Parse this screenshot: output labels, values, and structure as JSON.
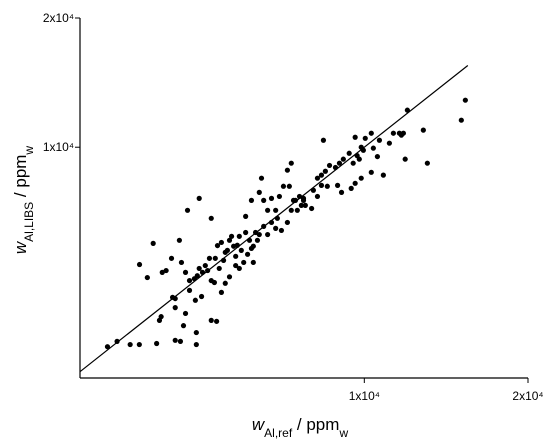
{
  "chart_data": {
    "type": "scatter",
    "log_x": true,
    "log_y": true,
    "color": "#000000",
    "x_label": [
      {
        "text": "w",
        "style": "italic"
      },
      {
        "text": "Al,ref",
        "style": "sub"
      },
      {
        "text": " / ppm"
      },
      {
        "text": "w",
        "style": "sub"
      }
    ],
    "y_label": [
      {
        "text": "w",
        "style": "italic"
      },
      {
        "text": "Al,LIBS",
        "style": "sub"
      },
      {
        "text": " / ppm"
      },
      {
        "text": "w",
        "style": "sub"
      }
    ],
    "xlim": [
      3000,
      20000
    ],
    "ylim": [
      2900,
      20000
    ],
    "xticks": [
      {
        "value": 10000,
        "label": "1x10⁴"
      },
      {
        "value": 20000,
        "label": "2x10⁴"
      }
    ],
    "yticks": [
      {
        "value": 10000,
        "label": "1x10⁴"
      },
      {
        "value": 20000,
        "label": "2x10⁴"
      }
    ],
    "reference_line": {
      "x": [
        3000,
        15500
      ],
      "y": [
        3000,
        15500
      ]
    },
    "x": [
      3370,
      3510,
      3710,
      3857,
      4150,
      4200,
      4490,
      4590,
      4910,
      4910,
      5230,
      5350,
      4230,
      4490,
      4650,
      4690,
      4890,
      4770,
      4440,
      4490,
      5020,
      3860,
      3990,
      4090,
      4250,
      4320,
      4420,
      4570,
      4610,
      4690,
      4770,
      4870,
      4930,
      4970,
      5040,
      5100,
      5150,
      5190,
      5230,
      5300,
      5320,
      5370,
      5410,
      5460,
      5510,
      5550,
      5600,
      5650,
      5700,
      5750,
      5800,
      5840,
      5890,
      5940,
      6000,
      6050,
      6100,
      6150,
      6200,
      6250,
      6310,
      6360,
      6410,
      6530,
      6640,
      6750,
      6870,
      6920,
      7040,
      6530,
      6640,
      6750,
      6870,
      6980,
      7100,
      7220,
      7340,
      7410,
      7530,
      7600,
      7660,
      7730,
      7790,
      7280,
      7220,
      7340,
      8410,
      5230,
      4730,
      4970,
      6050,
      6200,
      6410,
      6470,
      6250,
      5800,
      5550,
      5460,
      5650,
      5890,
      8200,
      8340,
      8480,
      8630,
      8850,
      9000,
      9150,
      9380,
      9540,
      9700,
      9790,
      9870,
      9620,
      9960,
      10040,
      10300,
      10390,
      10570,
      10660,
      11120,
      11310,
      11600,
      11700,
      11800,
      10840,
      10300,
      9870,
      9620,
      9460,
      9080,
      8930,
      8550,
      8340,
      8200,
      8060,
      8000,
      7730,
      7470,
      11890,
      12840,
      13060,
      12000,
      15080,
      15340
    ],
    "y": [
      3430,
      3530,
      3470,
      3470,
      3490,
      3950,
      3550,
      3530,
      3470,
      3700,
      3950,
      3930,
      4030,
      4230,
      3840,
      4100,
      4400,
      4640,
      4470,
      4440,
      4490,
      5330,
      4970,
      5970,
      5110,
      5160,
      5510,
      6070,
      5390,
      5110,
      4890,
      4940,
      5020,
      5220,
      5110,
      5300,
      5160,
      5510,
      4890,
      4840,
      5510,
      5900,
      5220,
      6000,
      5450,
      5690,
      5750,
      6070,
      6200,
      5880,
      5570,
      5910,
      6200,
      5750,
      5390,
      6330,
      5630,
      6070,
      5810,
      5880,
      6330,
      6070,
      6260,
      6540,
      6260,
      6680,
      6470,
      6830,
      6400,
      7520,
      7130,
      7600,
      7130,
      7680,
      8110,
      6680,
      7130,
      7520,
      7130,
      7680,
      7320,
      7520,
      7320,
      8110,
      8840,
      9180,
      10380,
      6830,
      7130,
      7600,
      6900,
      7520,
      7850,
      8470,
      5390,
      5300,
      4820,
      4590,
      4990,
      5220,
      8470,
      8610,
      8790,
      9070,
      8970,
      9180,
      9380,
      9680,
      9180,
      9560,
      9380,
      10000,
      10550,
      9840,
      10490,
      10780,
      9950,
      9510,
      10380,
      10220,
      10780,
      10780,
      10670,
      10780,
      8610,
      8740,
      8470,
      8240,
      8020,
      7850,
      8150,
      8110,
      8150,
      7680,
      7940,
      7200,
      7600,
      7520,
      9380,
      10960,
      9180,
      12200,
      11560,
      12870
    ]
  }
}
